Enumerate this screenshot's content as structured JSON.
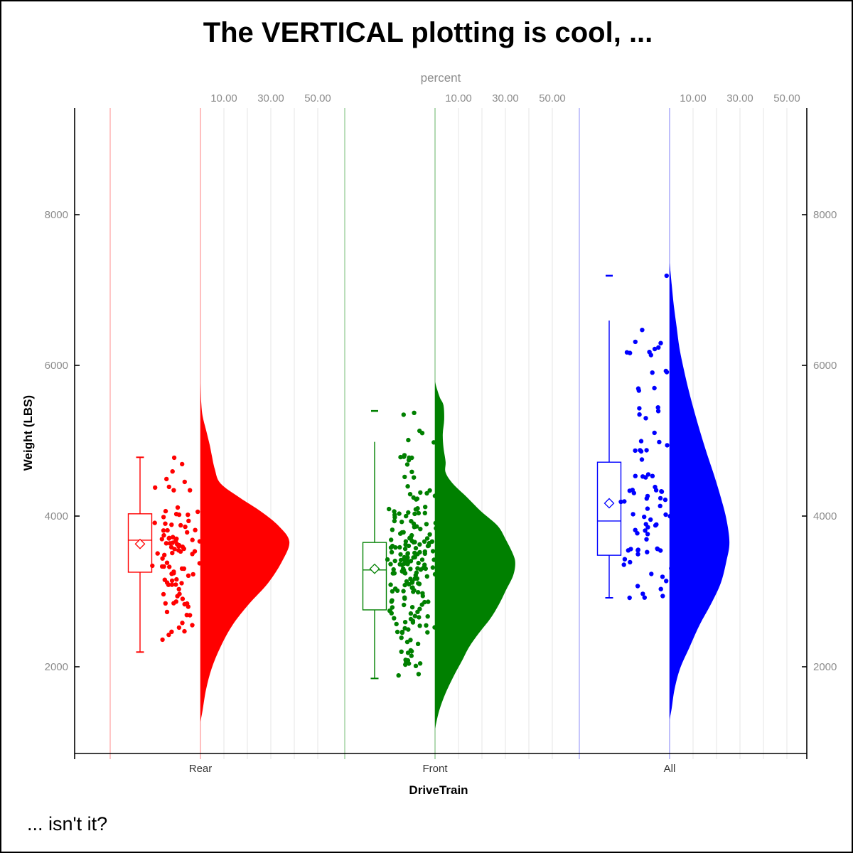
{
  "figure": {
    "title": "The VERTICAL plotting is cool, ...",
    "caption": "... isn't it?"
  },
  "top_axis": {
    "title": "percent",
    "tick_labels": [
      "10.00",
      "30.00",
      "50.00"
    ],
    "tick_values": [
      10,
      30,
      50
    ],
    "gridline_values": [
      10,
      20,
      30,
      40,
      50
    ]
  },
  "left_axis": {
    "title": "Weight (LBS)",
    "tick_labels": [
      "2000",
      "4000",
      "6000",
      "8000"
    ],
    "tick_values": [
      2000,
      4000,
      6000,
      8000
    ]
  },
  "right_axis": {
    "tick_labels": [
      "2000",
      "4000",
      "6000",
      "8000"
    ],
    "tick_values": [
      2000,
      4000,
      6000,
      8000
    ]
  },
  "bottom_axis": {
    "title": "DriveTrain",
    "categories": [
      "Rear",
      "Front",
      "All"
    ]
  },
  "style": {
    "background": "#ffffff",
    "axis_color": "#000000",
    "gridline_color": "#efefef",
    "tick_text_color": "#8c8c8c",
    "category_text_color": "#333333"
  },
  "chart_data": {
    "type": "raincloud (half-violin + box plot + jittered strip)",
    "orientation": "vertical",
    "x_variable": "DriveTrain",
    "y_variable": "Weight (LBS)",
    "y_axis_range": [
      850,
      9420
    ],
    "percent_axis_labeled": [
      10,
      30,
      50
    ],
    "groups": [
      {
        "label": "Rear",
        "color": "#ff0000",
        "color_light": "#ffb8b8",
        "n_points": 95,
        "seed": 101,
        "box": {
          "whisker_low": 2195,
          "q1": 3255,
          "median": 3680,
          "mean": 3630,
          "q3": 4030,
          "whisker_high": 4780,
          "cap_low": true,
          "cap_high": true
        },
        "far_out_values": [],
        "strip_extremes": [
          4775,
          4690
        ],
        "sample_range": [
          2195,
          4660
        ],
        "violin_profile": [
          [
            1270,
            0
          ],
          [
            1420,
            0.9
          ],
          [
            1700,
            2.4
          ],
          [
            1980,
            4.8
          ],
          [
            2260,
            8.5
          ],
          [
            2550,
            13.6
          ],
          [
            2830,
            20.6
          ],
          [
            3110,
            28.8
          ],
          [
            3400,
            34.8
          ],
          [
            3660,
            37.9
          ],
          [
            3870,
            33.3
          ],
          [
            4060,
            25.8
          ],
          [
            4245,
            16.7
          ],
          [
            4435,
            8.5
          ],
          [
            4625,
            6.1
          ],
          [
            4810,
            4.8
          ],
          [
            4950,
            3.9
          ],
          [
            5140,
            2.4
          ],
          [
            5330,
            0.9
          ],
          [
            5520,
            0.3
          ],
          [
            5760,
            0
          ]
        ]
      },
      {
        "label": "Front",
        "color": "#008000",
        "color_light": "#aad5aa",
        "n_points": 204,
        "seed": 202,
        "box": {
          "whisker_low": 1845,
          "q1": 2755,
          "median": 3285,
          "mean": 3300,
          "q3": 3650,
          "whisker_high": 4985,
          "cap_low": true,
          "cap_high": false
        },
        "far_out_values": [
          5395
        ],
        "strip_extremes": [
          5370,
          5345
        ],
        "sample_range": [
          1845,
          5150
        ],
        "violin_profile": [
          [
            1180,
            0
          ],
          [
            1420,
            1.8
          ],
          [
            1650,
            4.5
          ],
          [
            1890,
            8.2
          ],
          [
            2080,
            11.5
          ],
          [
            2260,
            14.5
          ],
          [
            2450,
            18.8
          ],
          [
            2640,
            23.6
          ],
          [
            2830,
            27.3
          ],
          [
            3020,
            30.3
          ],
          [
            3210,
            33.3
          ],
          [
            3370,
            34.2
          ],
          [
            3490,
            33.3
          ],
          [
            3680,
            30.3
          ],
          [
            3870,
            26.7
          ],
          [
            4060,
            19.7
          ],
          [
            4250,
            13.6
          ],
          [
            4430,
            7.6
          ],
          [
            4580,
            4.5
          ],
          [
            4720,
            4.5
          ],
          [
            4910,
            3.6
          ],
          [
            5090,
            3.3
          ],
          [
            5280,
            3.9
          ],
          [
            5470,
            3.6
          ],
          [
            5570,
            2.1
          ],
          [
            5680,
            0.9
          ],
          [
            5780,
            0
          ]
        ]
      },
      {
        "label": "All",
        "color": "#0000ff",
        "color_light": "#b8b8fb",
        "n_points": 86,
        "seed": 303,
        "box": {
          "whisker_low": 2915,
          "q1": 3480,
          "median": 3935,
          "mean": 4170,
          "q3": 4715,
          "whisker_high": 6595,
          "cap_low": true,
          "cap_high": false
        },
        "far_out_values": [
          7190
        ],
        "strip_extremes": [
          7190,
          6470
        ],
        "sample_range": [
          2915,
          6350
        ],
        "violin_profile": [
          [
            1300,
            0
          ],
          [
            1450,
            0.9
          ],
          [
            1700,
            2.1
          ],
          [
            1980,
            4.5
          ],
          [
            2260,
            8.5
          ],
          [
            2550,
            12.7
          ],
          [
            2830,
            17.6
          ],
          [
            3110,
            21.8
          ],
          [
            3400,
            24.2
          ],
          [
            3650,
            25.5
          ],
          [
            3960,
            24.2
          ],
          [
            4250,
            21.8
          ],
          [
            4530,
            19.1
          ],
          [
            4810,
            16.1
          ],
          [
            5090,
            13.3
          ],
          [
            5380,
            10.6
          ],
          [
            5660,
            8.2
          ],
          [
            5940,
            6.1
          ],
          [
            6230,
            4.2
          ],
          [
            6510,
            3.0
          ],
          [
            6790,
            1.8
          ],
          [
            7070,
            0.9
          ],
          [
            7360,
            0
          ]
        ]
      }
    ]
  }
}
